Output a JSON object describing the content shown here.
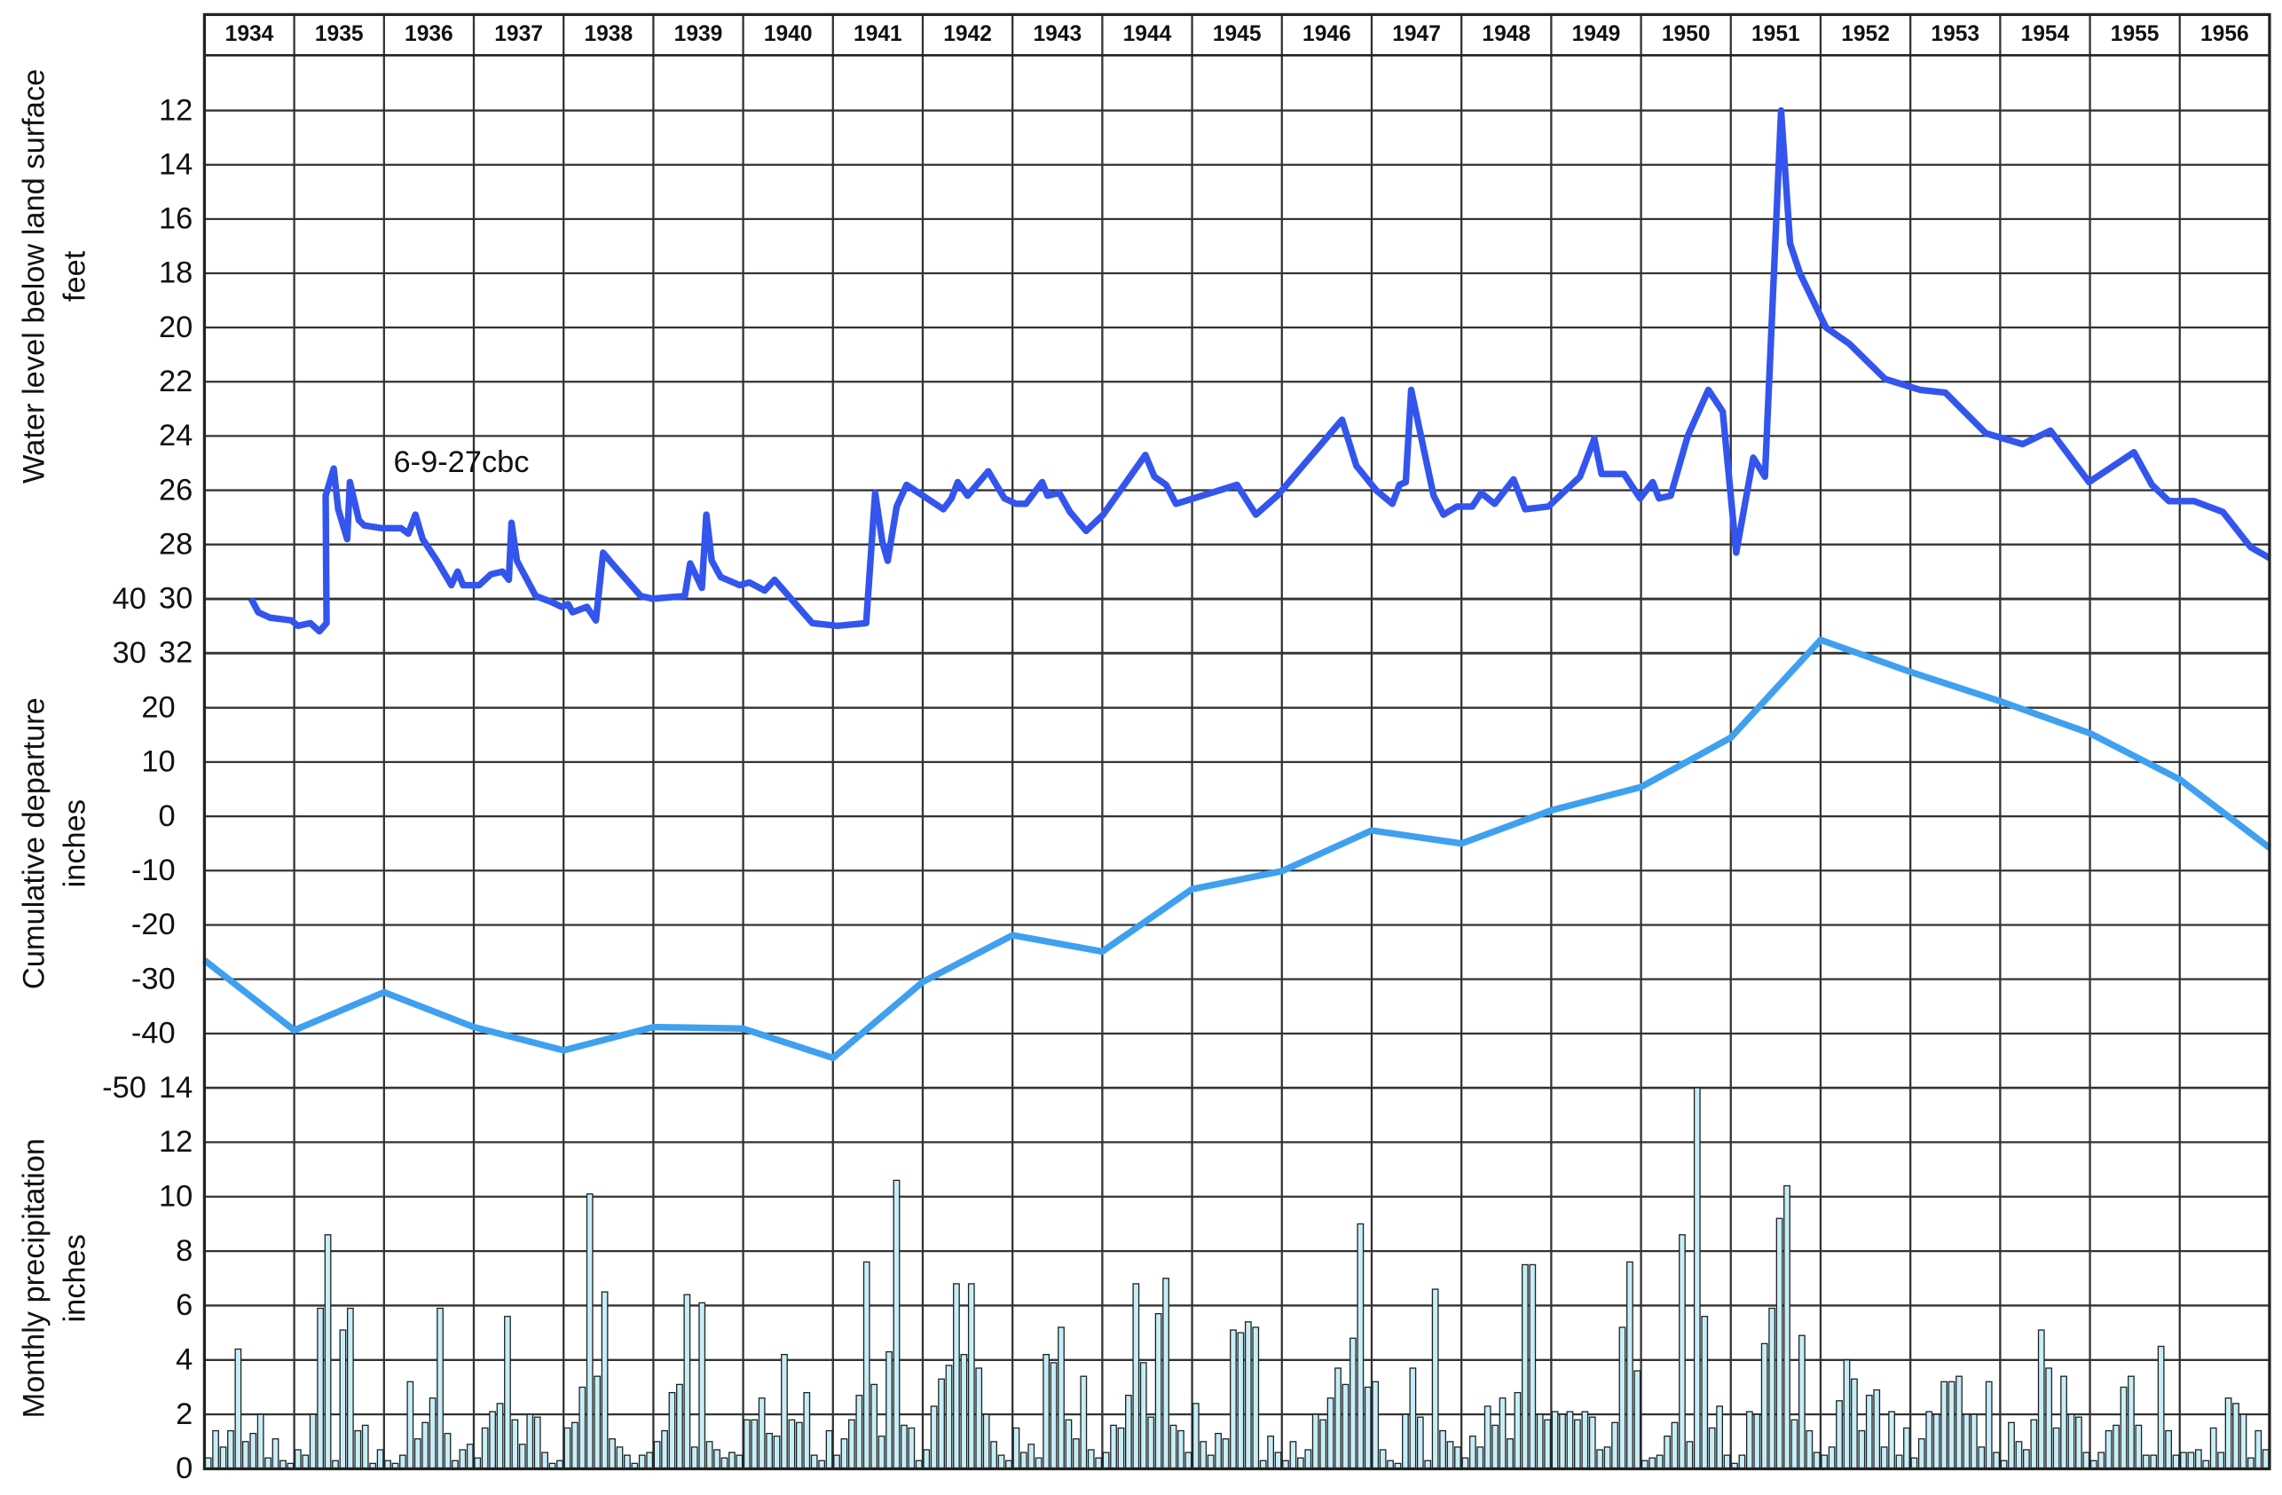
{
  "chart_data": [
    {
      "type": "line",
      "y_label": [
        "Water level below land surface",
        "feet"
      ],
      "annotation": "6-9-27cbc",
      "xlim": [
        1934,
        1957
      ],
      "xticks": [
        1934,
        1935,
        1936,
        1937,
        1938,
        1939,
        1940,
        1941,
        1942,
        1943,
        1944,
        1945,
        1946,
        1947,
        1948,
        1949,
        1950,
        1951,
        1952,
        1953,
        1954,
        1955,
        1956
      ],
      "ylim": [
        10,
        32
      ],
      "y_inverted": true,
      "yticks": [
        12,
        14,
        16,
        18,
        20,
        22,
        24,
        26,
        28,
        30,
        32
      ],
      "grid": true,
      "series": [
        {
          "color": "#3355ee",
          "x": [
            1934.52,
            1934.6,
            1934.73,
            1934.97,
            1935.04,
            1935.18,
            1935.28,
            1935.36,
            1935.35,
            1935.44,
            1935.49,
            1935.59,
            1935.62,
            1935.72,
            1935.78,
            1935.98,
            1936.19,
            1936.27,
            1936.35,
            1936.43,
            1936.59,
            1936.75,
            1936.82,
            1936.88,
            1937.06,
            1937.19,
            1937.32,
            1937.39,
            1937.42,
            1937.48,
            1937.69,
            1937.85,
            1937.98,
            1938.05,
            1938.1,
            1938.26,
            1938.36,
            1938.44,
            1938.54,
            1938.86,
            1938.99,
            1939.35,
            1939.41,
            1939.54,
            1939.59,
            1939.65,
            1939.75,
            1939.96,
            1940.07,
            1940.24,
            1940.35,
            1940.77,
            1941.05,
            1941.37,
            1941.47,
            1941.55,
            1941.61,
            1941.71,
            1941.82,
            1942.23,
            1942.32,
            1942.39,
            1942.5,
            1942.73,
            1942.91,
            1943.04,
            1943.15,
            1943.33,
            1943.39,
            1943.52,
            1943.64,
            1943.82,
            1944.01,
            1944.48,
            1944.58,
            1944.71,
            1944.82,
            1945.5,
            1945.71,
            1945.95,
            1946.67,
            1946.83,
            1947.05,
            1947.23,
            1947.31,
            1947.38,
            1947.44,
            1947.69,
            1947.8,
            1947.95,
            1948.12,
            1948.22,
            1948.37,
            1948.58,
            1948.71,
            1948.97,
            1949.32,
            1949.48,
            1949.56,
            1949.81,
            1949.99,
            1950.13,
            1950.2,
            1950.33,
            1950.52,
            1950.75,
            1950.91,
            1951.06,
            1951.25,
            1951.38,
            1951.56,
            1951.66,
            1951.77,
            1951.9,
            1952.06,
            1952.32,
            1952.72,
            1953.11,
            1953.39,
            1953.84,
            1954.25,
            1954.56,
            1954.99,
            1955.49,
            1955.69,
            1955.88,
            1956.16,
            1956.48,
            1956.79,
            1957.0
          ],
          "values": [
            30.0,
            30.5,
            30.7,
            30.8,
            31.0,
            30.9,
            31.2,
            30.9,
            26.2,
            25.2,
            26.7,
            27.8,
            25.7,
            27.1,
            27.3,
            27.4,
            27.4,
            27.6,
            26.9,
            27.8,
            28.6,
            29.5,
            29.0,
            29.5,
            29.5,
            29.1,
            29.0,
            29.3,
            27.2,
            28.6,
            29.9,
            30.1,
            30.3,
            30.2,
            30.5,
            30.3,
            30.8,
            28.3,
            28.7,
            29.9,
            30.0,
            29.9,
            28.7,
            29.6,
            26.9,
            28.6,
            29.2,
            29.5,
            29.4,
            29.7,
            29.3,
            30.9,
            31.0,
            30.9,
            26.1,
            27.9,
            28.6,
            26.6,
            25.8,
            26.7,
            26.3,
            25.7,
            26.2,
            25.3,
            26.3,
            26.5,
            26.5,
            25.7,
            26.2,
            26.1,
            26.8,
            27.5,
            26.9,
            24.7,
            25.5,
            25.8,
            26.5,
            25.8,
            26.9,
            26.2,
            23.4,
            25.1,
            26.0,
            26.5,
            25.8,
            25.7,
            22.3,
            26.2,
            26.9,
            26.6,
            26.6,
            26.1,
            26.5,
            25.6,
            26.7,
            26.6,
            25.5,
            24.1,
            25.4,
            25.4,
            26.3,
            25.7,
            26.3,
            26.2,
            24.0,
            22.3,
            23.1,
            28.3,
            24.8,
            25.5,
            12.0,
            16.9,
            18.0,
            18.9,
            20.0,
            20.6,
            21.9,
            22.3,
            22.4,
            23.9,
            24.3,
            23.8,
            25.7,
            24.6,
            25.8,
            26.4,
            26.4,
            26.8,
            28.1,
            28.5
          ]
        }
      ]
    },
    {
      "type": "line",
      "y_label": [
        "Cumulative departure",
        "inches"
      ],
      "xlim": [
        1934,
        1957
      ],
      "ylim": [
        -50,
        40
      ],
      "yticks": [
        -50,
        -40,
        -30,
        -20,
        -10,
        0,
        10,
        20,
        30,
        40
      ],
      "grid": true,
      "series": [
        {
          "color": "#3fa0f0",
          "x": [
            1934,
            1935,
            1936,
            1937,
            1938,
            1939,
            1940,
            1941,
            1942,
            1943,
            1944,
            1945,
            1946,
            1947,
            1948,
            1949,
            1950,
            1951,
            1952,
            1953,
            1954,
            1955,
            1956,
            1957
          ],
          "values": [
            -26.5,
            -39.4,
            -32.4,
            -38.8,
            -43.1,
            -38.8,
            -39.1,
            -44.5,
            -30.5,
            -21.9,
            -24.9,
            -13.4,
            -10.1,
            -2.6,
            -5.0,
            1.1,
            5.4,
            14.5,
            32.5,
            26.6,
            21.2,
            15.3,
            6.8,
            -5.8
          ]
        }
      ]
    },
    {
      "type": "bar",
      "y_label": [
        "Monthly precipitation",
        "inches"
      ],
      "xlim": [
        1934,
        1957
      ],
      "ylim": [
        0,
        14
      ],
      "yticks": [
        0,
        2,
        4,
        6,
        8,
        10,
        12,
        14
      ],
      "grid": true,
      "color": "#c5eef8",
      "values": [
        0.4,
        1.4,
        0.8,
        1.4,
        4.4,
        1.0,
        1.3,
        2.0,
        0.4,
        1.1,
        0.3,
        0.2,
        0.7,
        0.5,
        2.0,
        5.9,
        8.6,
        0.3,
        5.1,
        5.9,
        1.4,
        1.6,
        0.2,
        0.7,
        0.3,
        0.2,
        0.5,
        3.2,
        1.1,
        1.7,
        2.6,
        5.9,
        1.3,
        0.3,
        0.7,
        0.9,
        0.4,
        1.5,
        2.1,
        2.4,
        5.6,
        1.8,
        0.9,
        2.0,
        1.9,
        0.6,
        0.2,
        0.3,
        1.5,
        1.7,
        3.0,
        10.1,
        3.4,
        6.5,
        1.1,
        0.8,
        0.5,
        0.2,
        0.5,
        0.6,
        1.0,
        1.4,
        2.8,
        3.1,
        6.4,
        0.8,
        6.1,
        1.0,
        0.7,
        0.4,
        0.6,
        0.5,
        1.8,
        1.8,
        2.6,
        1.3,
        1.2,
        4.2,
        1.8,
        1.7,
        2.8,
        0.5,
        0.3,
        1.4,
        0.5,
        1.1,
        1.8,
        2.7,
        7.6,
        3.1,
        1.2,
        4.3,
        10.6,
        1.6,
        1.5,
        0.3,
        0.7,
        2.3,
        3.3,
        3.8,
        6.8,
        4.2,
        6.8,
        3.7,
        2.0,
        1.0,
        0.5,
        0.3,
        1.5,
        0.6,
        0.9,
        0.4,
        4.2,
        3.9,
        5.2,
        1.8,
        1.1,
        3.4,
        0.7,
        0.4,
        0.6,
        1.6,
        1.5,
        2.7,
        6.8,
        3.9,
        1.9,
        5.7,
        7.0,
        1.6,
        1.4,
        0.6,
        2.4,
        1.0,
        0.5,
        1.3,
        1.1,
        5.1,
        5.0,
        5.4,
        5.2,
        0.3,
        1.2,
        0.6,
        0.3,
        1.0,
        0.4,
        0.7,
        2.0,
        1.8,
        2.6,
        3.7,
        3.1,
        4.8,
        9.0,
        3.0,
        3.2,
        0.7,
        0.3,
        0.2,
        2.0,
        3.7,
        1.9,
        0.3,
        6.6,
        1.4,
        1.0,
        0.8,
        0.4,
        1.2,
        0.8,
        2.3,
        1.6,
        2.6,
        1.1,
        2.8,
        7.5,
        7.5,
        2.0,
        1.8,
        2.1,
        2.0,
        2.1,
        1.8,
        2.1,
        1.9,
        0.7,
        0.8,
        1.7,
        5.2,
        7.6,
        3.6,
        0.3,
        0.4,
        0.5,
        1.2,
        1.7,
        8.6,
        1.0,
        14.0,
        5.6,
        1.5,
        2.3,
        0.5,
        0.2,
        0.5,
        2.1,
        2.0,
        4.6,
        5.9,
        9.2,
        10.4,
        1.8,
        4.9,
        1.4,
        0.6,
        0.5,
        0.8,
        2.5,
        4.0,
        3.3,
        1.4,
        2.7,
        2.9,
        0.8,
        2.1,
        0.5,
        1.5,
        0.4,
        1.1,
        2.1,
        2.0,
        3.2,
        3.2,
        3.4,
        2.0,
        2.0,
        0.8,
        3.2,
        0.6,
        0.3,
        1.7,
        1.0,
        0.7,
        1.8,
        5.1,
        3.7,
        1.5,
        3.4,
        2.0,
        1.9,
        0.6,
        0.3,
        0.6,
        1.4,
        1.6,
        3.0,
        3.4,
        1.6,
        0.5,
        0.5,
        4.5,
        1.4,
        0.5,
        0.6,
        0.6,
        0.7,
        0.3,
        1.5,
        0.6,
        2.6,
        2.4,
        2.0,
        0.4,
        1.4,
        0.7
      ]
    }
  ]
}
